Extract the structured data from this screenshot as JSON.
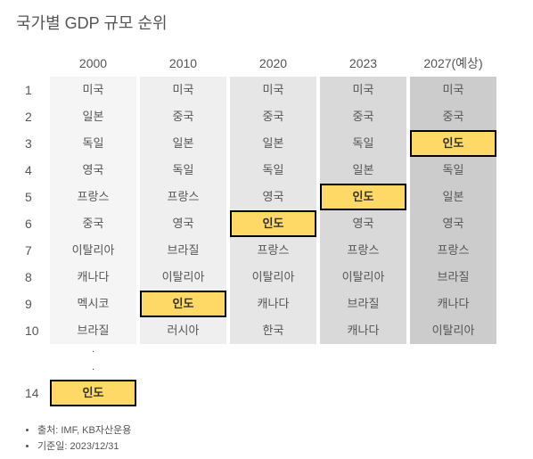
{
  "title": "국가별 GDP 규모 순위",
  "highlight_country": "인도",
  "colors": {
    "col_bg": [
      "#f5f5f5",
      "#efefef",
      "#e6e6e6",
      "#d9d9d9",
      "#cccccc"
    ],
    "highlight_bg": "#ffd966",
    "highlight_border": "#000000",
    "text": "#555555"
  },
  "columns": [
    "2000",
    "2010",
    "2020",
    "2023",
    "2027(예상)"
  ],
  "ranks": [
    1,
    2,
    3,
    4,
    5,
    6,
    7,
    8,
    9,
    10
  ],
  "data": [
    [
      "미국",
      "미국",
      "미국",
      "미국",
      "미국"
    ],
    [
      "일본",
      "중국",
      "중국",
      "중국",
      "중국"
    ],
    [
      "독일",
      "일본",
      "일본",
      "독일",
      "인도"
    ],
    [
      "영국",
      "독일",
      "독일",
      "일본",
      "독일"
    ],
    [
      "프랑스",
      "프랑스",
      "영국",
      "인도",
      "일본"
    ],
    [
      "중국",
      "영국",
      "인도",
      "영국",
      "영국"
    ],
    [
      "이탈리아",
      "브라질",
      "프랑스",
      "프랑스",
      "프랑스"
    ],
    [
      "캐나다",
      "이탈리아",
      "이탈리아",
      "이탈리아",
      "브라질"
    ],
    [
      "멕시코",
      "인도",
      "캐나다",
      "브라질",
      "캐나다"
    ],
    [
      "브라질",
      "러시아",
      "한국",
      "캐나다",
      "이탈리아"
    ]
  ],
  "extra_row": {
    "rank": 14,
    "cells": [
      "인도",
      "",
      "",
      "",
      ""
    ]
  },
  "notes": [
    "출처: IMF, KB자산운용",
    "기준일: 2023/12/31"
  ]
}
